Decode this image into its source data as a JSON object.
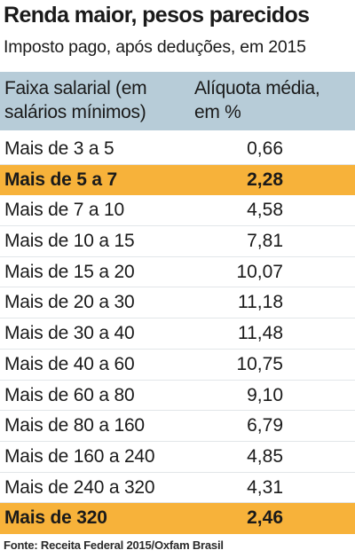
{
  "title": "Renda maior, pesos parecidos",
  "subtitle": "Imposto pago, após deduções, em 2015",
  "header": {
    "col1_line1": "Faixa salarial (em",
    "col1_line2": "salários mínimos)",
    "col2_line1": "Alíquota média,",
    "col2_line2": "em %"
  },
  "colors": {
    "header_bg": "#b7ccd8",
    "highlight": "#f7b23a"
  },
  "chart_data": {
    "type": "table",
    "title": "Renda maior, pesos parecidos",
    "subtitle": "Imposto pago, após deduções, em 2015",
    "columns": [
      "Faixa salarial (em salários mínimos)",
      "Alíquota média, em %"
    ],
    "rows": [
      {
        "faixa": "Mais de 3 a 5",
        "aliquota": "0,66",
        "highlight": false
      },
      {
        "faixa": "Mais de 5 a 7",
        "aliquota": "2,28",
        "highlight": true
      },
      {
        "faixa": "Mais de 7 a 10",
        "aliquota": "4,58",
        "highlight": false
      },
      {
        "faixa": "Mais de 10 a 15",
        "aliquota": "7,81",
        "highlight": false
      },
      {
        "faixa": "Mais de 15 a 20",
        "aliquota": "10,07",
        "highlight": false
      },
      {
        "faixa": "Mais de 20 a 30",
        "aliquota": "11,18",
        "highlight": false
      },
      {
        "faixa": "Mais de 30 a 40",
        "aliquota": "11,48",
        "highlight": false
      },
      {
        "faixa": "Mais de 40 a 60",
        "aliquota": "10,75",
        "highlight": false
      },
      {
        "faixa": "Mais de 60 a 80",
        "aliquota": "9,10",
        "highlight": false
      },
      {
        "faixa": "Mais de 80 a 160",
        "aliquota": "6,79",
        "highlight": false
      },
      {
        "faixa": "Mais de 160 a 240",
        "aliquota": "4,85",
        "highlight": false
      },
      {
        "faixa": "Mais de 240 a 320",
        "aliquota": "4,31",
        "highlight": false
      },
      {
        "faixa": "Mais de 320",
        "aliquota": "2,46",
        "highlight": true
      }
    ],
    "source": "Fonte: Receita Federal 2015/Oxfam Brasil"
  }
}
